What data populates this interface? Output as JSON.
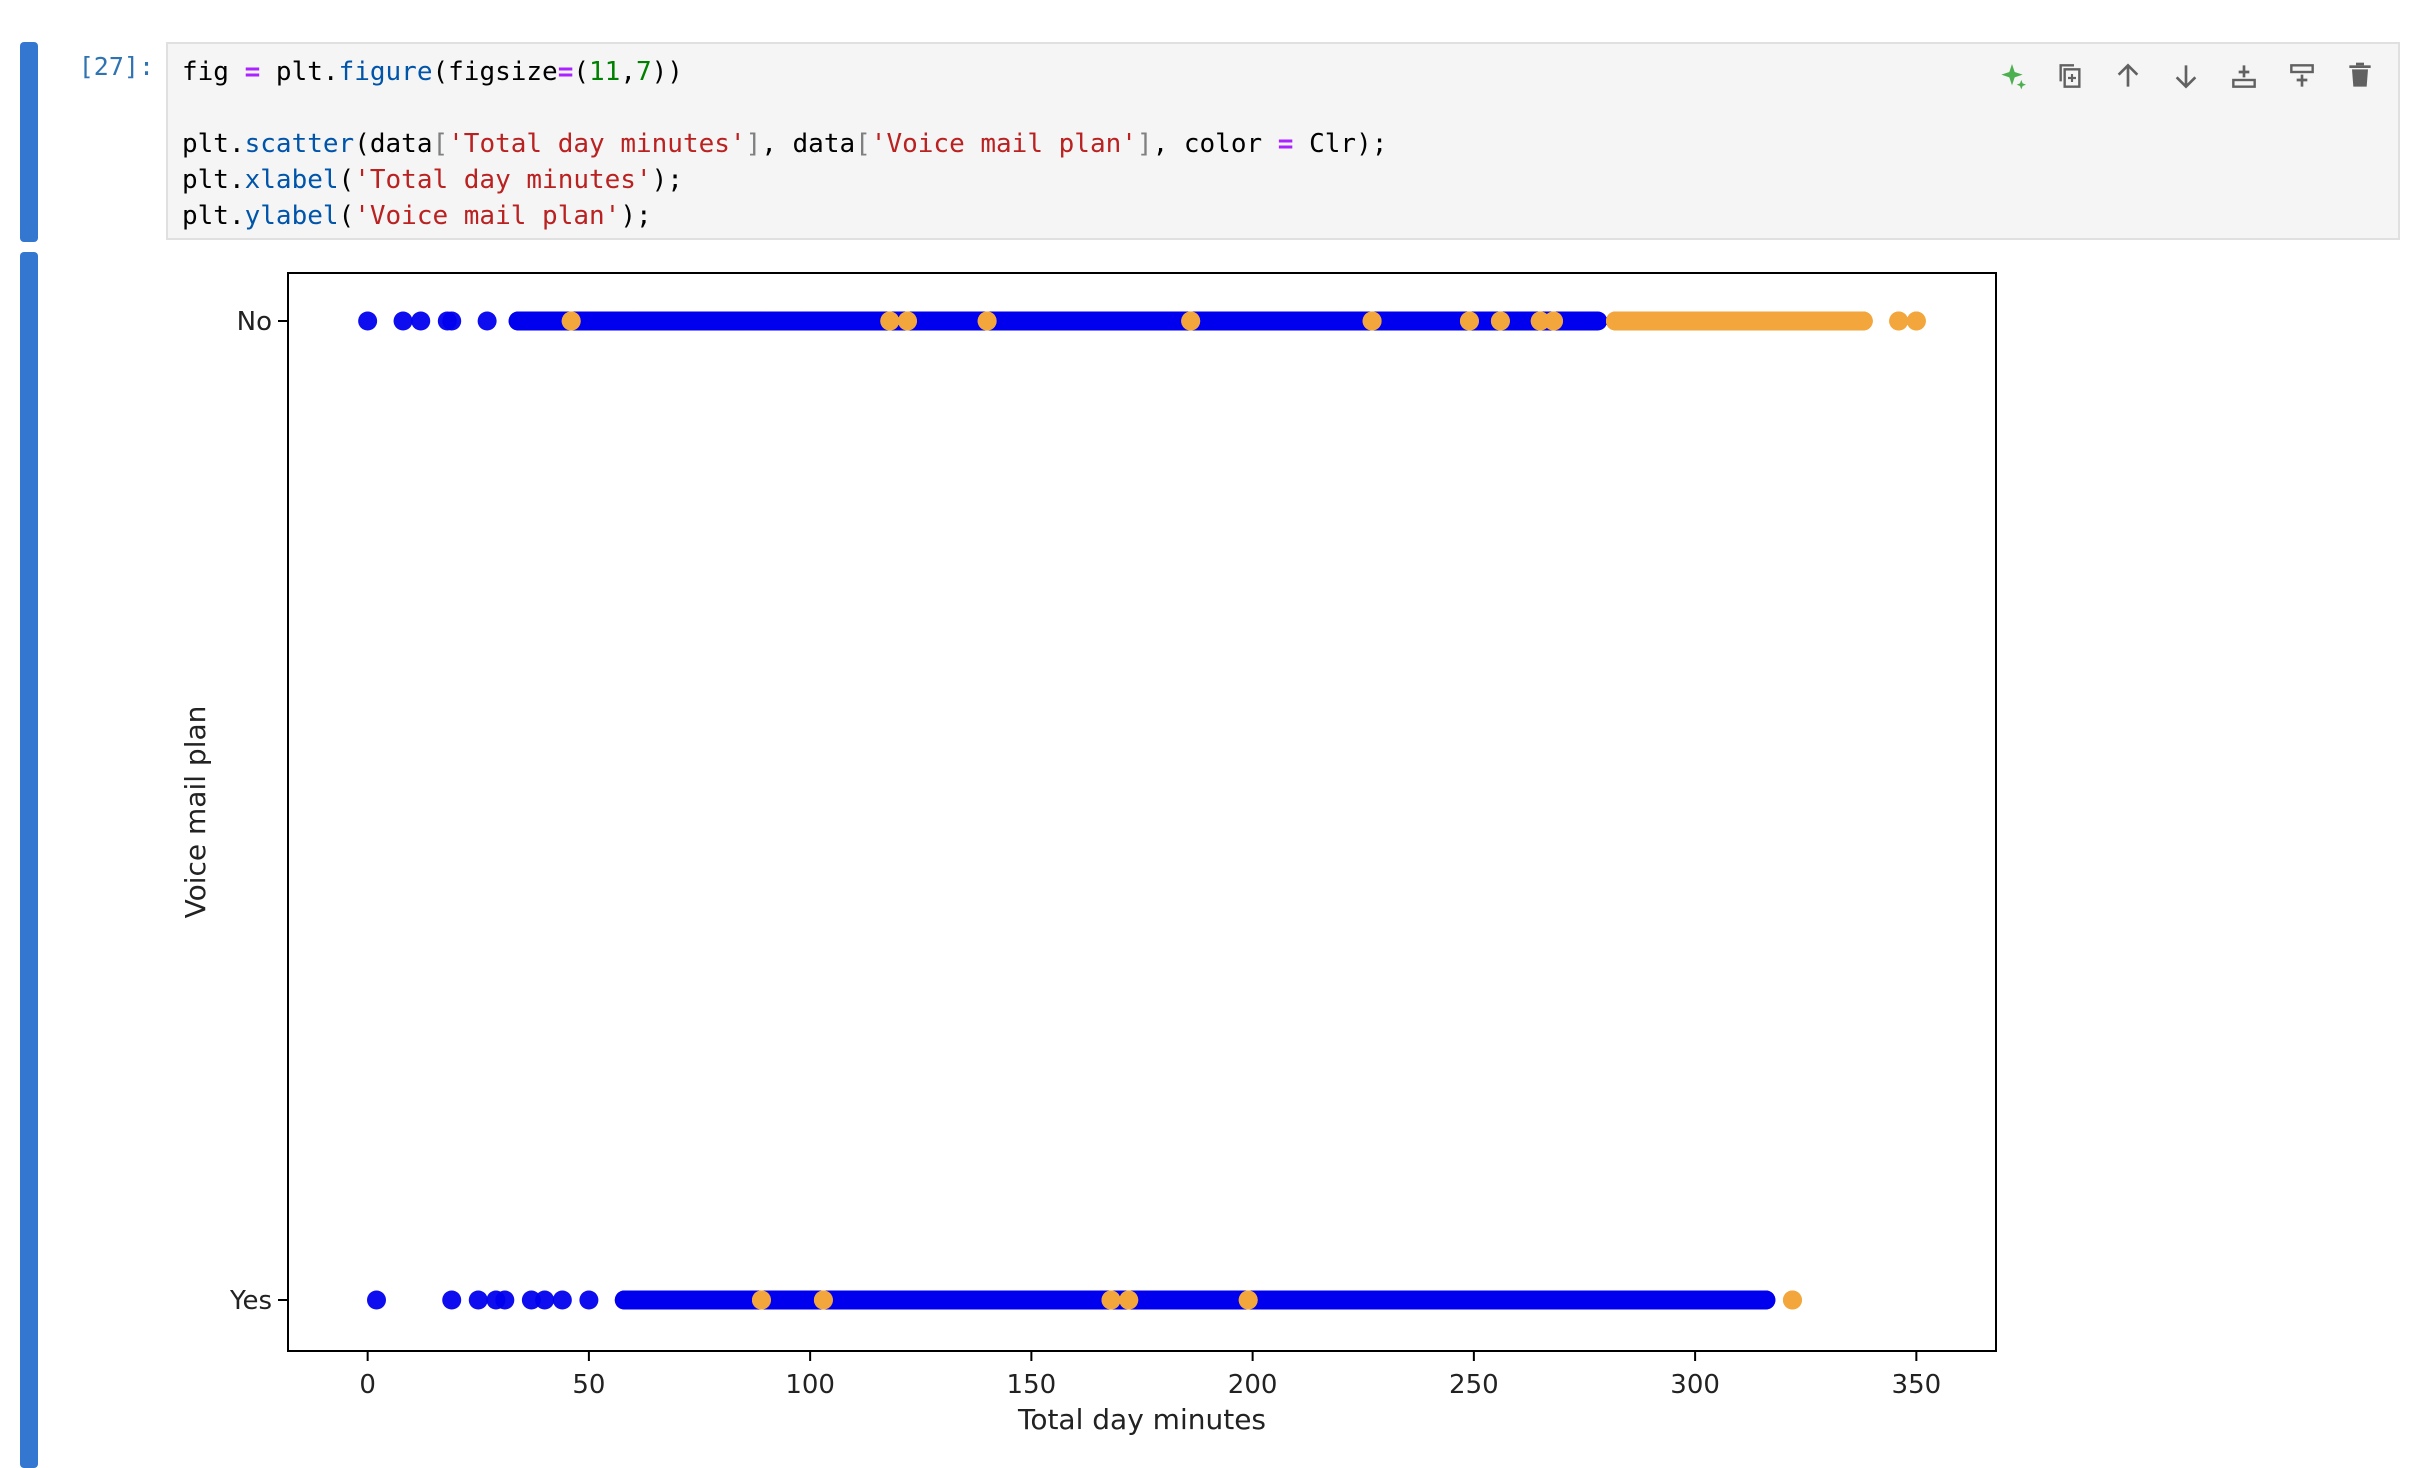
{
  "cell": {
    "prompt": "[27]:",
    "code_lines": [
      [
        {
          "t": "fig ",
          "c": ""
        },
        {
          "t": "=",
          "c": "kw-op"
        },
        {
          "t": " plt.",
          "c": ""
        },
        {
          "t": "figure",
          "c": "fn"
        },
        {
          "t": "(figsize",
          "c": ""
        },
        {
          "t": "=",
          "c": "kw-op"
        },
        {
          "t": "(",
          "c": ""
        },
        {
          "t": "11",
          "c": "num"
        },
        {
          "t": ",",
          "c": ""
        },
        {
          "t": "7",
          "c": "num"
        },
        {
          "t": "))",
          "c": ""
        }
      ],
      [],
      [
        {
          "t": "plt.",
          "c": ""
        },
        {
          "t": "scatter",
          "c": "fn"
        },
        {
          "t": "(data",
          "c": ""
        },
        {
          "t": "[",
          "c": "brk"
        },
        {
          "t": "'Total day minutes'",
          "c": "str"
        },
        {
          "t": "]",
          "c": "brk"
        },
        {
          "t": ", data",
          "c": ""
        },
        {
          "t": "[",
          "c": "brk"
        },
        {
          "t": "'Voice mail plan'",
          "c": "str"
        },
        {
          "t": "]",
          "c": "brk"
        },
        {
          "t": ", color ",
          "c": ""
        },
        {
          "t": "=",
          "c": "kw-op"
        },
        {
          "t": " Clr);",
          "c": ""
        }
      ],
      [
        {
          "t": "plt.",
          "c": ""
        },
        {
          "t": "xlabel",
          "c": "fn"
        },
        {
          "t": "(",
          "c": ""
        },
        {
          "t": "'Total day minutes'",
          "c": "str"
        },
        {
          "t": ");",
          "c": ""
        }
      ],
      [
        {
          "t": "plt.",
          "c": ""
        },
        {
          "t": "ylabel",
          "c": "fn"
        },
        {
          "t": "(",
          "c": ""
        },
        {
          "t": "'Voice mail plan'",
          "c": "str"
        },
        {
          "t": ");",
          "c": ""
        }
      ]
    ],
    "toolbar": [
      {
        "name": "ai-assist-icon",
        "color": "#4caf50"
      },
      {
        "name": "duplicate-cell-icon"
      },
      {
        "name": "move-up-icon"
      },
      {
        "name": "move-down-icon"
      },
      {
        "name": "insert-above-icon"
      },
      {
        "name": "insert-below-icon"
      },
      {
        "name": "delete-cell-icon"
      }
    ]
  },
  "chart_data": {
    "type": "scatter",
    "xlabel": "Total day minutes",
    "ylabel": "Voice mail plan",
    "xlim": [
      -18,
      368
    ],
    "xticks": [
      0,
      50,
      100,
      150,
      200,
      250,
      300,
      350
    ],
    "categories": [
      "Yes",
      "No"
    ],
    "colors": {
      "blue": "#0000ee",
      "orange": "#f2a63c"
    },
    "series": [
      {
        "category": "No",
        "color": "blue",
        "x": [
          0,
          8,
          12,
          18,
          19,
          27,
          34,
          37,
          40,
          42,
          44,
          45,
          47,
          49,
          51,
          52,
          53,
          55,
          58,
          60,
          62,
          65,
          68,
          70,
          72,
          75,
          78,
          80,
          83,
          86,
          90,
          93,
          95,
          98,
          100,
          103,
          106,
          110,
          112,
          115,
          125,
          128,
          132,
          136,
          140,
          145,
          150,
          155,
          160,
          165,
          170,
          175,
          180,
          190,
          195,
          200,
          205,
          210,
          215,
          220,
          225,
          230,
          235,
          240,
          245,
          252,
          258,
          263,
          270,
          275
        ]
      },
      {
        "category": "No",
        "color": "orange",
        "x": [
          46,
          118,
          122,
          140,
          186,
          227,
          249,
          256,
          265,
          268,
          282,
          285,
          288,
          292,
          296,
          300,
          304,
          308,
          312,
          318,
          322,
          326,
          330,
          334,
          338,
          346,
          350
        ]
      },
      {
        "category": "Yes",
        "color": "blue",
        "x": [
          2,
          19,
          25,
          29,
          31,
          37,
          40,
          44,
          50,
          58,
          60,
          63,
          66,
          70,
          74,
          78,
          82,
          86,
          95,
          100,
          107,
          112,
          118,
          124,
          130,
          136,
          142,
          148,
          154,
          160,
          166,
          176,
          182,
          188,
          194,
          205,
          212,
          218,
          224,
          230,
          236,
          242,
          248,
          254,
          266,
          272,
          278,
          283,
          288,
          294,
          299,
          302,
          305,
          308,
          311,
          314,
          316
        ]
      },
      {
        "category": "Yes",
        "color": "orange",
        "x": [
          89,
          103,
          168,
          172,
          199,
          322
        ]
      }
    ]
  }
}
